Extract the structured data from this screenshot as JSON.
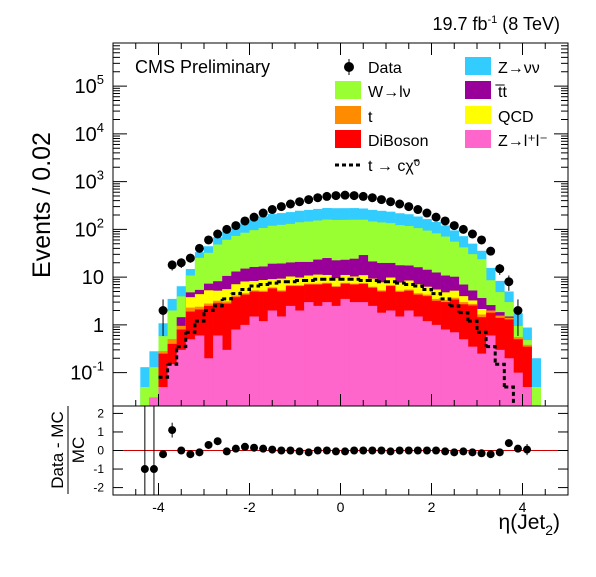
{
  "chart_data": [
    {
      "type": "histogram-stacked",
      "lumi_label": "19.7 fb",
      "lumi_sup": "-1",
      "lumi_energy": " (8 TeV)",
      "experiment_label": "CMS Preliminary",
      "ylabel": "Events / 0.02",
      "yscale": "log",
      "ylim": [
        0.02,
        800000
      ],
      "xlim": [
        -5,
        5
      ],
      "y_ticks": [
        {
          "v": 0.1,
          "base": "10",
          "sup": "-1"
        },
        {
          "v": 1,
          "base": "1",
          "sup": ""
        },
        {
          "v": 10,
          "base": "10",
          "sup": ""
        },
        {
          "v": 100,
          "base": "10",
          "sup": "2"
        },
        {
          "v": 1000,
          "base": "10",
          "sup": "3"
        },
        {
          "v": 10000,
          "base": "10",
          "sup": "4"
        },
        {
          "v": 100000,
          "base": "10",
          "sup": "5"
        }
      ],
      "bin_edges": [
        -4.6,
        -4.4,
        -4.2,
        -4.0,
        -3.8,
        -3.6,
        -3.4,
        -3.2,
        -3.0,
        -2.8,
        -2.6,
        -2.4,
        -2.2,
        -2.0,
        -1.8,
        -1.6,
        -1.4,
        -1.2,
        -1.0,
        -0.8,
        -0.6,
        -0.4,
        -0.2,
        0.0,
        0.2,
        0.4,
        0.6,
        0.8,
        1.0,
        1.2,
        1.4,
        1.6,
        1.8,
        2.0,
        2.2,
        2.4,
        2.6,
        2.8,
        3.0,
        3.2,
        3.4,
        3.6,
        3.8,
        4.0,
        4.2,
        4.4,
        4.6
      ],
      "series": [
        {
          "name": "Z→l⁺l⁻",
          "color": "#ff66cc",
          "values": [
            0,
            0,
            0.03,
            0.05,
            0.15,
            0.3,
            0.5,
            0.6,
            0.2,
            0.6,
            0.3,
            0.8,
            1.0,
            1.5,
            1.2,
            2.0,
            1.5,
            2.5,
            2.0,
            3.0,
            2.5,
            3.0,
            2.5,
            3.5,
            3.0,
            3.0,
            2.5,
            1.8,
            2.0,
            1.5,
            2.0,
            1.5,
            1.2,
            1.0,
            0.8,
            0.7,
            0.5,
            0.35,
            0.25,
            0.6,
            0.3,
            0.2,
            0.1,
            0.05,
            0,
            0
          ]
        },
        {
          "name": "DiBoson",
          "color": "#ff0000",
          "values": [
            0,
            0,
            0,
            0.2,
            0.25,
            0.5,
            1.4,
            1.5,
            2.3,
            2.3,
            2.5,
            3.0,
            3.3,
            3.5,
            3.7,
            3.8,
            3.5,
            4.0,
            4.5,
            4.0,
            4.5,
            4.3,
            3.7,
            3.8,
            4.0,
            4.2,
            3.5,
            3.2,
            4.5,
            3.4,
            3.2,
            2.8,
            2.8,
            2.2,
            2.2,
            2.7,
            2.2,
            2.2,
            1.2,
            1.2,
            1.1,
            1.1,
            0.4,
            0.3,
            0,
            0
          ]
        },
        {
          "name": "t",
          "color": "#ff8c00",
          "values": [
            0,
            0,
            0,
            0.03,
            0.1,
            0.15,
            0.4,
            0.3,
            0.3,
            0.3,
            0.3,
            0.3,
            0.3,
            0.3,
            0.3,
            0.3,
            0.3,
            0.3,
            0.3,
            0.3,
            0.3,
            0.3,
            0.3,
            0.3,
            0.3,
            0.3,
            0.3,
            0.3,
            0.3,
            0.3,
            0.3,
            0.3,
            0.3,
            0.3,
            0.3,
            0.3,
            0.3,
            0.2,
            0.2,
            0.2,
            0.15,
            0.1,
            0.05,
            0.03,
            0,
            0
          ]
        },
        {
          "name": "QCD",
          "color": "#ffff00",
          "values": [
            0,
            0,
            0,
            0,
            0,
            0,
            1.5,
            2.0,
            2.5,
            2.0,
            2.5,
            3.0,
            3.5,
            3.0,
            3.5,
            3.0,
            4.0,
            3.5,
            3.0,
            3.5,
            4.0,
            3.5,
            3.0,
            3.5,
            3.0,
            3.5,
            3.0,
            2.5,
            3.0,
            2.5,
            3.0,
            2.5,
            2.0,
            2.0,
            1.5,
            1.5,
            1.0,
            0.5,
            0.5,
            0,
            0,
            0,
            0,
            0,
            0,
            0
          ]
        },
        {
          "name": "t̅t",
          "color": "#990099",
          "values": [
            0,
            0,
            0,
            0,
            0,
            0.5,
            1.0,
            1.0,
            2.0,
            3.0,
            5.0,
            6.0,
            7.0,
            8.0,
            8.0,
            10.0,
            10.0,
            10.0,
            11.0,
            10.0,
            12.0,
            14.0,
            13.0,
            12.0,
            14.0,
            18.0,
            12.0,
            12.0,
            10.0,
            10.0,
            9.0,
            9.0,
            8.0,
            7.0,
            6.0,
            5.0,
            3.0,
            2.0,
            1.5,
            0.6,
            0.3,
            0.1,
            0,
            0,
            0,
            0
          ]
        },
        {
          "name": "W→lν",
          "color": "#99ff33",
          "values": [
            0,
            0.05,
            0.1,
            0.3,
            1.5,
            2.5,
            6.0,
            20.0,
            25.0,
            40.0,
            50.0,
            60.0,
            70.0,
            80.0,
            90.0,
            100.0,
            105.0,
            110.0,
            120.0,
            125.0,
            130.0,
            135.0,
            135.0,
            135.0,
            135.0,
            130.0,
            125.0,
            120.0,
            115.0,
            105.0,
            100.0,
            90.0,
            80.0,
            70.0,
            60.0,
            45.0,
            35.0,
            25.0,
            20.0,
            6.0,
            3.0,
            1.5,
            0.4,
            0.1,
            0.05,
            0
          ]
        },
        {
          "name": "Z→νν",
          "color": "#33ccff",
          "values": [
            0,
            0.08,
            0.15,
            0.5,
            1.5,
            2.5,
            4.0,
            8.0,
            12.0,
            20.0,
            30.0,
            45.0,
            60.0,
            70.0,
            80.0,
            90.0,
            95.0,
            100.0,
            105.0,
            110.0,
            115.0,
            120.0,
            120.0,
            120.0,
            120.0,
            115.0,
            110.0,
            105.0,
            100.0,
            95.0,
            90.0,
            80.0,
            70.0,
            60.0,
            50.0,
            40.0,
            30.0,
            20.0,
            12.0,
            7.0,
            3.5,
            2.0,
            0.8,
            0.4,
            0.15,
            0
          ]
        }
      ],
      "signal": {
        "name": "t → cχ̃⁰",
        "color": "#000000",
        "values": [
          0,
          0,
          0,
          0.08,
          0.15,
          0.35,
          0.7,
          1.2,
          2.0,
          2.5,
          3.5,
          4.5,
          5.5,
          6.5,
          7.0,
          7.5,
          8.0,
          8.0,
          8.5,
          8.5,
          9.0,
          9.0,
          9.0,
          9.0,
          9.0,
          8.5,
          8.5,
          8.0,
          8.0,
          7.5,
          7.0,
          6.5,
          5.5,
          4.5,
          3.5,
          2.5,
          1.8,
          1.2,
          0.7,
          0.35,
          0.15,
          0.05,
          0,
          0,
          0,
          0
        ]
      },
      "data": {
        "name": "Data",
        "x": [
          -4.3,
          -4.1,
          -3.9,
          -3.7,
          -3.5,
          -3.3,
          -3.1,
          -2.9,
          -2.7,
          -2.5,
          -2.3,
          -2.1,
          -1.9,
          -1.7,
          -1.5,
          -1.3,
          -1.1,
          -0.9,
          -0.7,
          -0.5,
          -0.3,
          -0.1,
          0.1,
          0.3,
          0.5,
          0.7,
          0.9,
          1.1,
          1.3,
          1.5,
          1.7,
          1.9,
          2.1,
          2.3,
          2.5,
          2.7,
          2.9,
          3.1,
          3.3,
          3.5,
          3.7,
          3.9,
          4.1
        ],
        "y": [
          0,
          0,
          2,
          18,
          20,
          25,
          40,
          60,
          80,
          100,
          120,
          150,
          180,
          220,
          260,
          300,
          340,
          380,
          420,
          460,
          490,
          510,
          520,
          510,
          490,
          460,
          420,
          380,
          340,
          300,
          260,
          220,
          180,
          150,
          120,
          100,
          80,
          60,
          35,
          15,
          8,
          2,
          0
        ]
      },
      "legend": [
        {
          "label": "Data",
          "type": "marker",
          "color": "#000000"
        },
        {
          "label": "Z→νν",
          "type": "fill",
          "color": "#33ccff"
        },
        {
          "label": "W→lν",
          "type": "fill",
          "color": "#99ff33"
        },
        {
          "label": "t̅t",
          "type": "fill",
          "color": "#990099"
        },
        {
          "label": "t",
          "type": "fill",
          "color": "#ff8c00"
        },
        {
          "label": "QCD",
          "type": "fill",
          "color": "#ffff00"
        },
        {
          "label": "DiBoson",
          "type": "fill",
          "color": "#ff0000"
        },
        {
          "label": "Z→l⁺l⁻",
          "type": "fill",
          "color": "#ff66cc"
        },
        {
          "label": "t → cχ̃⁰",
          "type": "dashed",
          "color": "#000000"
        }
      ]
    },
    {
      "type": "ratio",
      "ylabel_numer": "Data - MC",
      "ylabel_denom": "MC",
      "ylim": [
        -2.4,
        2.4
      ],
      "y_ticks": [
        -2,
        -1,
        0,
        1,
        2
      ],
      "x_ticks": [
        -4,
        -2,
        0,
        2,
        4
      ],
      "xlim": [
        -5,
        5
      ],
      "xlabel_base": "η(Jet",
      "xlabel_sub": "2",
      "xlabel_close": ")",
      "reference_line": 0,
      "reference_color": "#cc0000",
      "points": {
        "x": [
          -4.3,
          -4.1,
          -3.9,
          -3.7,
          -3.5,
          -3.3,
          -3.1,
          -2.9,
          -2.7,
          -2.5,
          -2.3,
          -2.1,
          -1.9,
          -1.7,
          -1.5,
          -1.3,
          -1.1,
          -0.9,
          -0.7,
          -0.5,
          -0.3,
          -0.1,
          0.1,
          0.3,
          0.5,
          0.7,
          0.9,
          1.1,
          1.3,
          1.5,
          1.7,
          1.9,
          2.1,
          2.3,
          2.5,
          2.7,
          2.9,
          3.1,
          3.3,
          3.5,
          3.7,
          3.9,
          4.1
        ],
        "y": [
          -1.0,
          -1.0,
          -0.2,
          1.1,
          0.0,
          -0.2,
          -0.1,
          0.3,
          0.5,
          -0.05,
          0.1,
          0.2,
          0.15,
          0.1,
          0.05,
          0.0,
          0.0,
          -0.05,
          -0.1,
          0.0,
          0.0,
          -0.05,
          -0.05,
          0.0,
          0.0,
          0.0,
          0.0,
          -0.05,
          0.0,
          0.0,
          0.0,
          0.0,
          0.0,
          -0.05,
          -0.1,
          -0.05,
          -0.1,
          -0.15,
          -0.2,
          -0.1,
          0.4,
          0.1,
          0.05
        ],
        "err": [
          4.5,
          4.5,
          0.2,
          0.4,
          0.15,
          0.1,
          0.08,
          0.08,
          0.08,
          0.05,
          0.05,
          0.05,
          0.04,
          0.04,
          0.04,
          0.04,
          0.04,
          0.03,
          0.03,
          0.03,
          0.03,
          0.03,
          0.03,
          0.03,
          0.03,
          0.03,
          0.03,
          0.03,
          0.03,
          0.03,
          0.04,
          0.04,
          0.04,
          0.04,
          0.05,
          0.05,
          0.06,
          0.07,
          0.1,
          0.15,
          0.2,
          0.2,
          0.3
        ]
      }
    }
  ]
}
